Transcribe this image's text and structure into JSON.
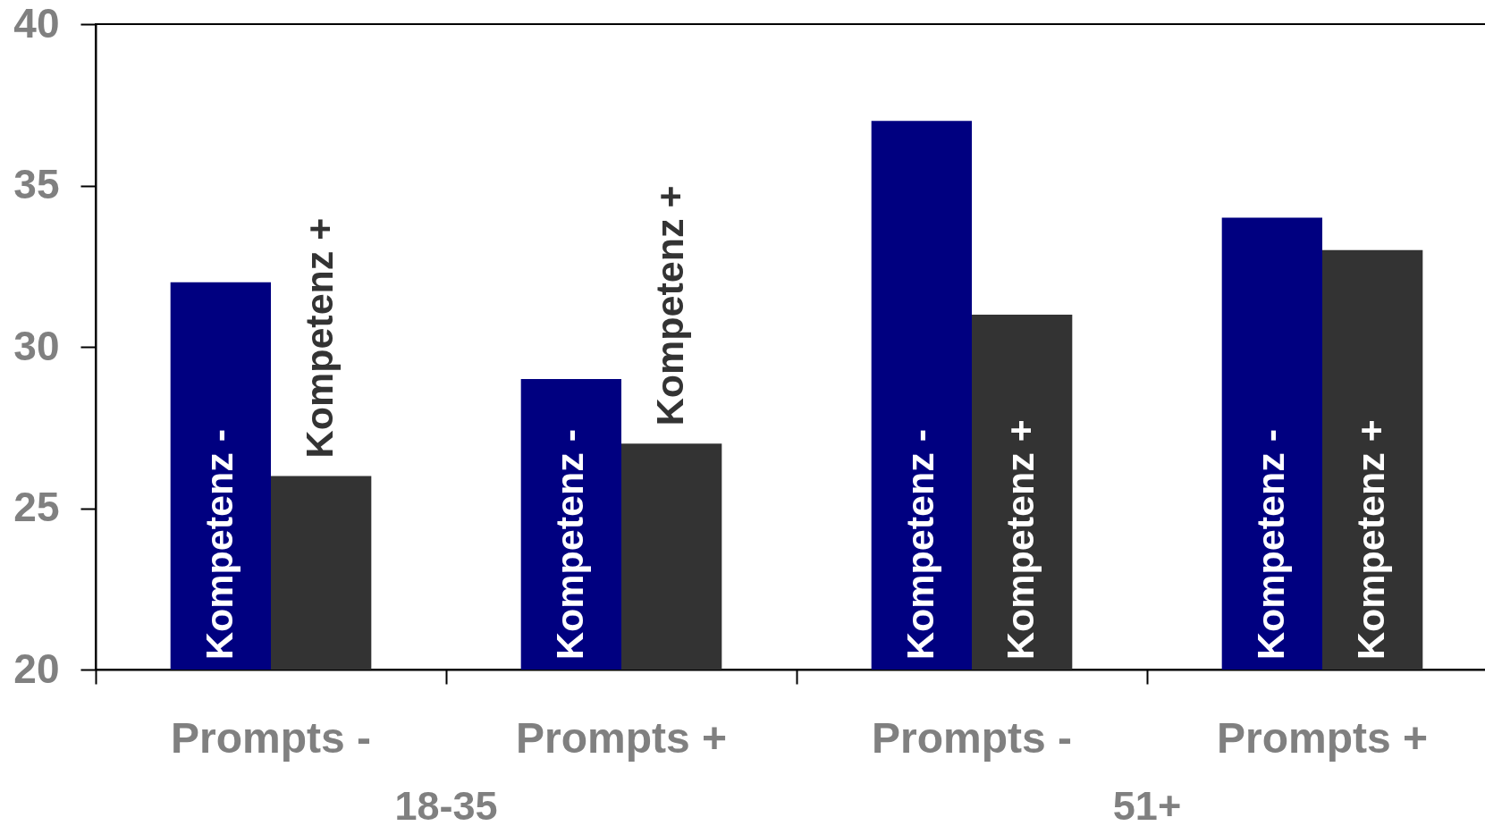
{
  "chart_data": {
    "type": "bar",
    "categories": [
      "Prompts -",
      "Prompts +",
      "Prompts -",
      "Prompts +"
    ],
    "series": [
      {
        "name": "Kompetenz -",
        "color": "#000080",
        "values": [
          32,
          29,
          37,
          34
        ]
      },
      {
        "name": "Kompetenz +",
        "color": "#333333",
        "values": [
          26,
          27,
          31,
          33
        ]
      }
    ],
    "ylim": [
      20,
      40
    ],
    "yticks": [
      20,
      25,
      30,
      35,
      40
    ],
    "annotations": [
      "18-35",
      "51+"
    ]
  }
}
